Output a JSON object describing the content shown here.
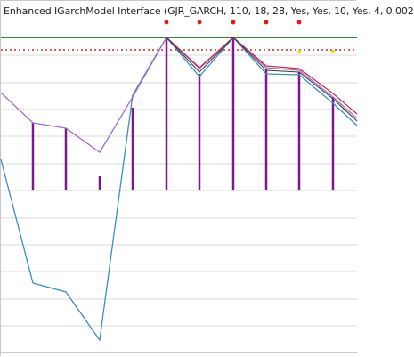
{
  "window": {
    "title": "Enhanced IGarchModel Interface (GJR_GARCH, 110, 18, 28, Yes, Yes, 10, Yes, 4, 0.002"
  },
  "colors": {
    "background": "#ffffff",
    "grid": "#d9d9d9",
    "axis_border": "#9a9a9a",
    "upper_band": "#2e8b2e",
    "lower_band": "#e02020",
    "histogram": "#7a1a8c",
    "series_purple": "#9c6fc8",
    "series_blue": "#3a8fc0",
    "series_red": "#d0304a",
    "series_dark": "#3a3a52",
    "marker_red": "#ee1111",
    "marker_yellow": "#e8e020"
  }
}
